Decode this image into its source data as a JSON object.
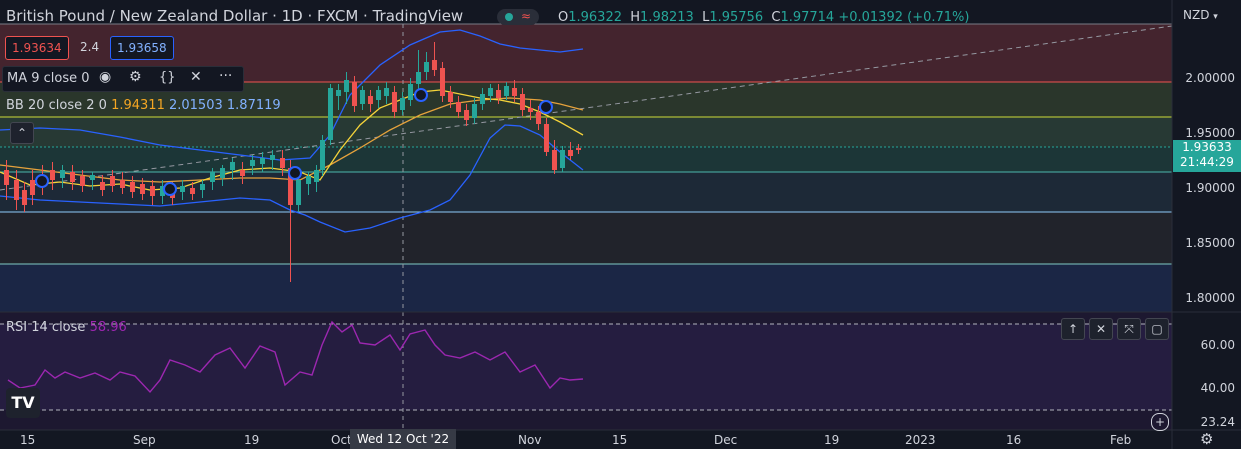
{
  "header": {
    "symbol_title": "British Pound / New Zealand Dollar · 1D · FXCM · TradingView",
    "ohlc": {
      "o_label": "O",
      "o": "1.96322",
      "h_label": "H",
      "h": "1.98213",
      "l_label": "L",
      "l": "1.95756",
      "c_label": "C",
      "c": "1.97714",
      "change": "+0.01392 (+0.71%)"
    },
    "currency": "NZD"
  },
  "trade": {
    "sell": "1.93634",
    "spread": "2.4",
    "buy": "1.93658"
  },
  "indicators": {
    "ma": {
      "label": "MA 9 close 0"
    },
    "bb": {
      "label": "BB 20 close 2 0",
      "basis": "1.94311",
      "upper": "2.01503",
      "lower": "1.87119"
    },
    "rsi": {
      "label": "RSI 14 close",
      "value": "58.96"
    }
  },
  "price_axis": {
    "ticks": [
      "2.00000",
      "1.95000",
      "1.90000",
      "1.85000",
      "1.80000"
    ],
    "current_price": "1.93633",
    "countdown": "21:44:29"
  },
  "rsi_axis": {
    "ticks": [
      "60.00",
      "40.00"
    ],
    "low_label": "23.24"
  },
  "time_axis": {
    "labels": [
      "15",
      "Sep",
      "19",
      "Oct",
      "Nov",
      "15",
      "Dec",
      "19",
      "2023",
      "16",
      "Feb"
    ],
    "crosshair_label": "Wed 12 Oct '22"
  },
  "colors": {
    "background": "#131722",
    "up": "#26a69a",
    "down": "#ef5350",
    "ma": "#f5d33a",
    "bb": "#2962ff",
    "rsi": "#9c27b0"
  }
}
